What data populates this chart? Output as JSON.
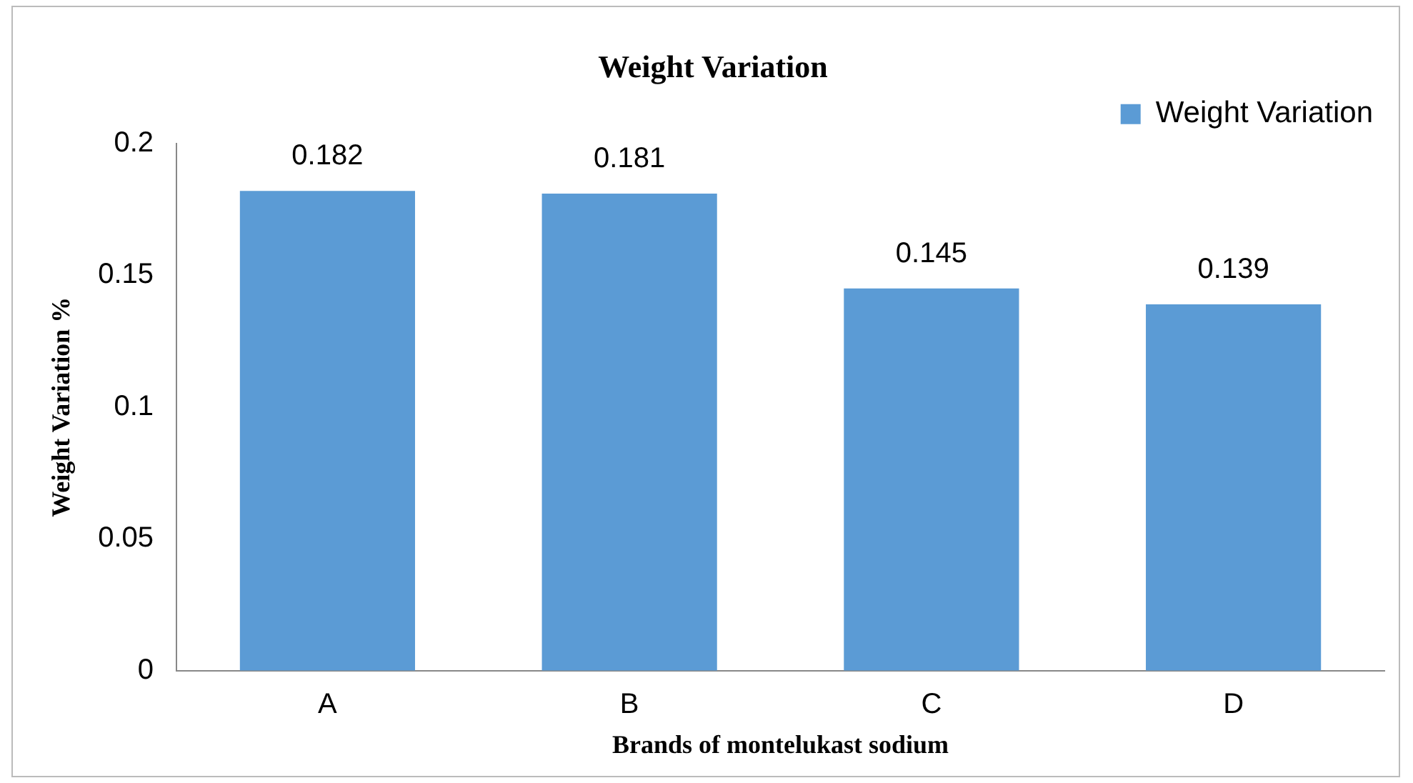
{
  "chart_data": {
    "type": "bar",
    "title": "Weight Variation",
    "xlabel": "Brands of montelukast sodium",
    "ylabel": "Weight Variation %",
    "categories": [
      "A",
      "B",
      "C",
      "D"
    ],
    "series": [
      {
        "name": "Weight Variation",
        "color": "#5b9bd5",
        "values": [
          0.182,
          0.181,
          0.145,
          0.139
        ]
      }
    ],
    "ylim": [
      0,
      0.2
    ],
    "yticks": [
      0,
      0.05,
      0.1,
      0.15,
      0.2
    ],
    "grid": false,
    "legend": "top right",
    "data_labels": true
  }
}
